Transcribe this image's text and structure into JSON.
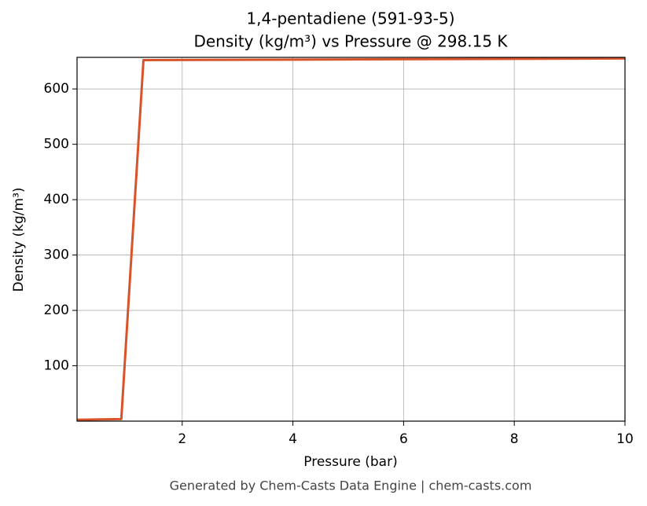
{
  "chart_data": {
    "type": "line",
    "title": "1,4-pentadiene (591-93-5)",
    "subtitle": "Density (kg/m³) vs Pressure @ 298.15 K",
    "x_label": "Pressure (bar)",
    "y_label": "Density (kg/m³)",
    "footer": "Generated by Chem-Casts Data Engine | chem-casts.com",
    "x": [
      0.1,
      0.9,
      1.3,
      10
    ],
    "series": [
      {
        "name": "1,4-pentadiene",
        "color": "#d9532a",
        "values": [
          2.5,
          3.8,
          652,
          655
        ]
      }
    ],
    "xlim": [
      0.1,
      10
    ],
    "xticks": [
      2,
      4,
      6,
      8,
      10
    ],
    "ylim": [
      0,
      657
    ],
    "yticks": [
      100,
      200,
      300,
      400,
      500,
      600
    ],
    "grid": true
  }
}
